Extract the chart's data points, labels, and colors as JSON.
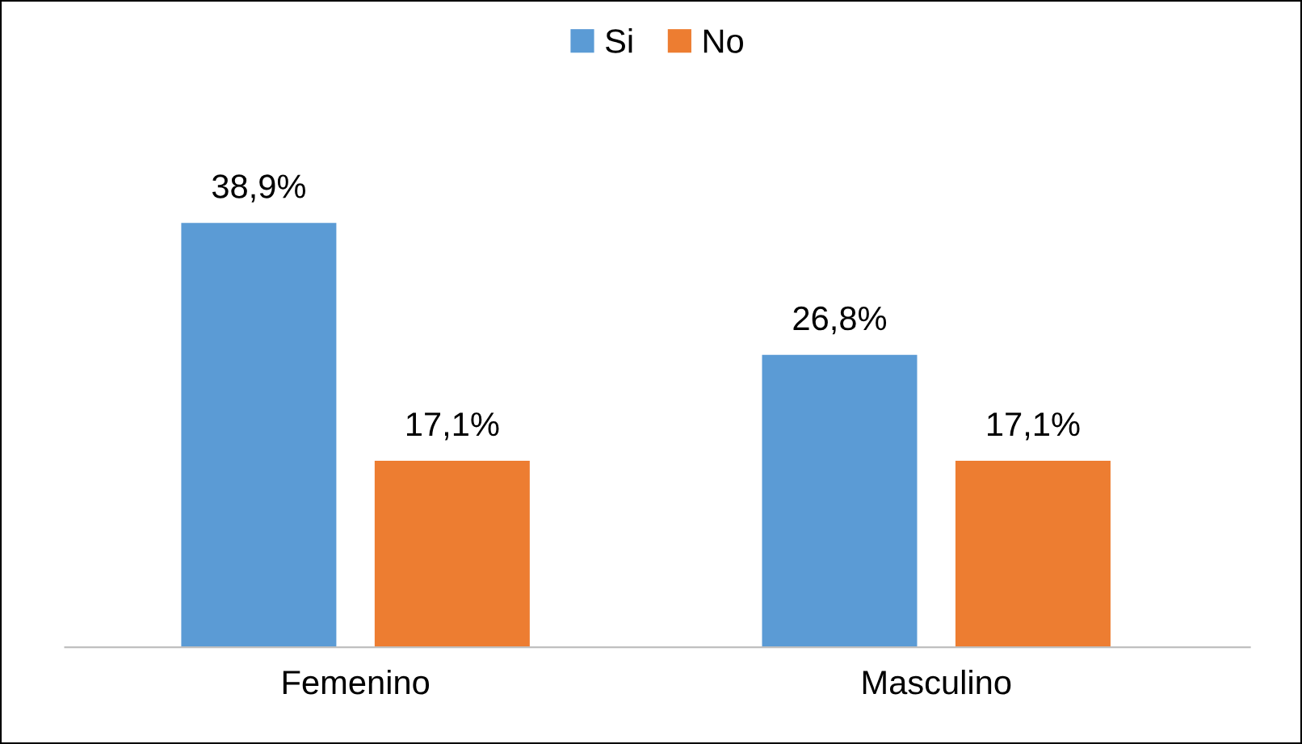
{
  "chart_data": {
    "type": "bar",
    "categories": [
      "Femenino",
      "Masculino"
    ],
    "series": [
      {
        "name": "Si",
        "color": "#5b9bd5",
        "values": [
          38.9,
          26.8
        ],
        "value_labels": [
          "38,9%",
          "26,8%"
        ]
      },
      {
        "name": "No",
        "color": "#ed7d31",
        "values": [
          17.1,
          17.1
        ],
        "value_labels": [
          "17,1%",
          "17,1%"
        ]
      }
    ],
    "tick_labels": "x",
    "grid": false,
    "legend": "top"
  }
}
